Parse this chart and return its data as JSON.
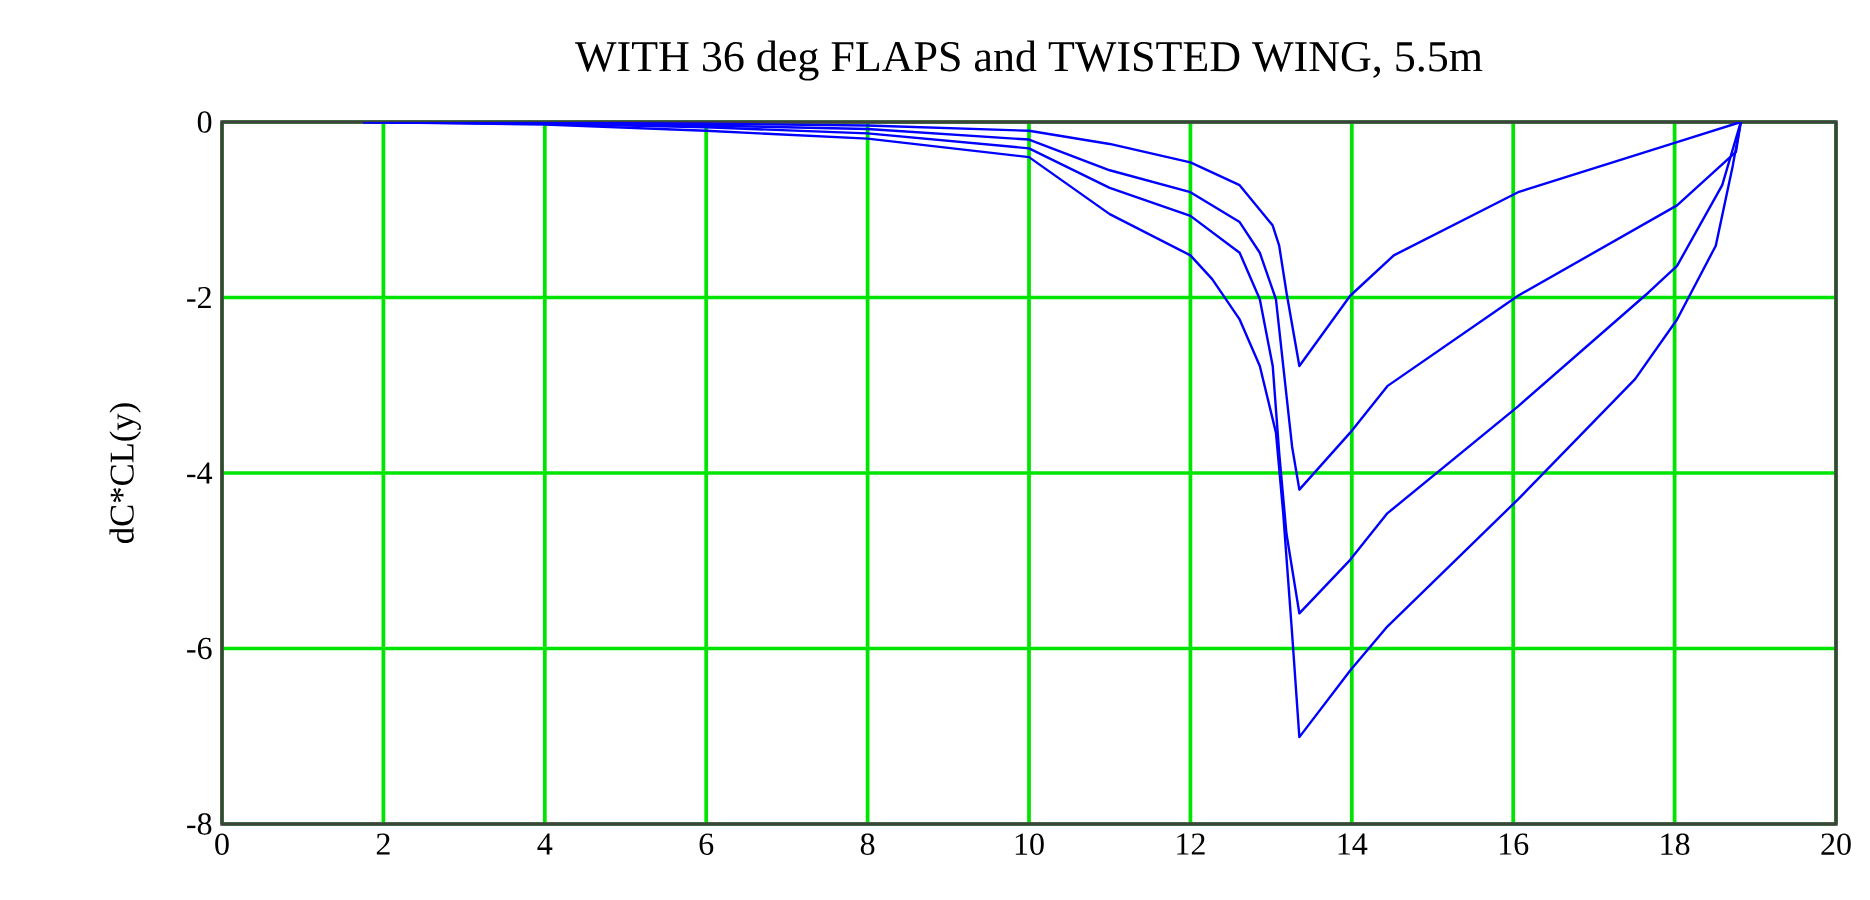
{
  "chart_data": {
    "type": "line",
    "title": "WITH 36 deg FLAPS and TWISTED WING, 5.5m",
    "ylabel": "dC*CL(y)",
    "xlim": [
      0,
      20
    ],
    "ylim": [
      -8,
      0
    ],
    "xticks": [
      0,
      2,
      4,
      6,
      8,
      10,
      12,
      14,
      16,
      18,
      20
    ],
    "yticks": [
      -8,
      -6,
      -4,
      -2,
      0
    ],
    "grid": true,
    "series": [
      {
        "color": "#0000ff",
        "x": [
          1.75,
          4,
          6,
          8,
          10,
          11,
          12,
          12.61,
          13.02,
          13.1,
          13.19,
          13.35,
          13.98,
          14.52,
          16.06,
          18.03,
          18.82
        ],
        "values": [
          0,
          -0.01,
          -0.02,
          -0.04,
          -0.1,
          -0.25,
          -0.46,
          -0.72,
          -1.18,
          -1.41,
          -1.94,
          -2.78,
          -1.98,
          -1.52,
          -0.8,
          -0.23,
          0
        ]
      },
      {
        "color": "#0000ff",
        "x": [
          1.75,
          4,
          6,
          8,
          10,
          11,
          12,
          12.61,
          12.86,
          13.06,
          13.15,
          13.26,
          13.35,
          13.98,
          14.44,
          16.06,
          18.03,
          18.76,
          18.82
        ],
        "values": [
          0,
          -0.01,
          -0.04,
          -0.08,
          -0.2,
          -0.55,
          -0.8,
          -1.14,
          -1.49,
          -2.02,
          -2.78,
          -3.7,
          -4.19,
          -3.54,
          -3.01,
          -1.98,
          -0.95,
          -0.34,
          0
        ]
      },
      {
        "color": "#0000ff",
        "x": [
          1.75,
          4,
          6,
          8,
          10,
          11,
          12,
          12.61,
          12.86,
          13.02,
          13.1,
          13.19,
          13.35,
          13.98,
          14.44,
          16.06,
          17.68,
          18.03,
          18.59,
          18.82
        ],
        "values": [
          0,
          -0.02,
          -0.06,
          -0.13,
          -0.3,
          -0.75,
          -1.07,
          -1.49,
          -2.02,
          -2.78,
          -3.77,
          -4.69,
          -5.6,
          -4.99,
          -4.46,
          -3.24,
          -1.94,
          -1.64,
          -0.72,
          0
        ]
      },
      {
        "color": "#0000ff",
        "x": [
          1.75,
          4,
          6,
          8,
          10,
          11,
          12,
          12.27,
          12.61,
          12.86,
          13.06,
          13.15,
          13.26,
          13.35,
          13.98,
          14.44,
          16.06,
          17.51,
          18.03,
          18.51,
          18.72,
          18.82
        ],
        "values": [
          0,
          -0.03,
          -0.1,
          -0.19,
          -0.4,
          -1.05,
          -1.52,
          -1.79,
          -2.25,
          -2.78,
          -3.54,
          -4.46,
          -5.83,
          -7.01,
          -6.25,
          -5.75,
          -4.3,
          -2.93,
          -2.25,
          -1.41,
          -0.5,
          0
        ]
      }
    ]
  }
}
